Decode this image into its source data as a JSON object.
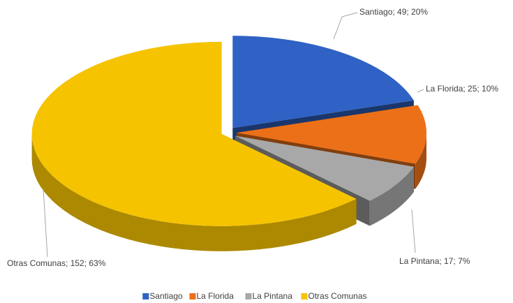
{
  "chart_data": {
    "type": "pie3d",
    "categories": [
      "Santiago",
      "La Florida",
      "La Pintana",
      "Otras Comunas"
    ],
    "values": [
      49,
      25,
      17,
      152
    ],
    "value_labels": [
      "Santiago; 49; 20%",
      "La Florida; 25; 10%",
      "La Pintana; 17; 7%",
      "Otras Comunas; 152; 63%"
    ],
    "colors": [
      "#2f62c4",
      "#ec7018",
      "#a8a8a8",
      "#f5c300"
    ],
    "legend": "bottom"
  }
}
